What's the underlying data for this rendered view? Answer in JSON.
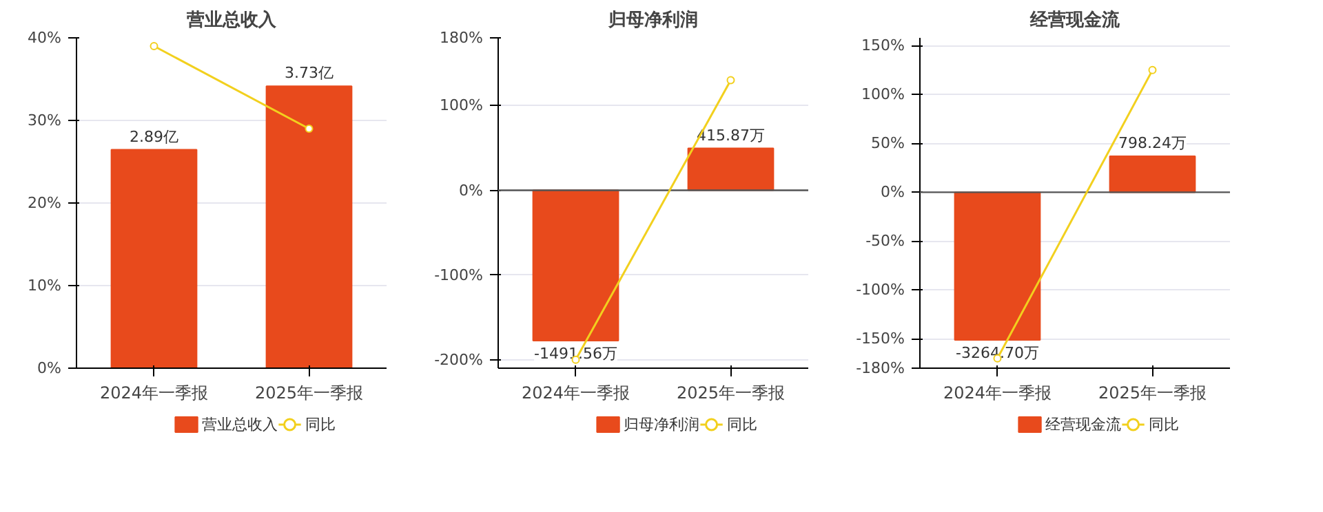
{
  "chart_data": [
    {
      "type": "bar",
      "title": "营业总收入",
      "categories": [
        "2024年一季报",
        "2025年一季报"
      ],
      "series": [
        {
          "name": "营业总收入",
          "axis": "y2",
          "color": "#e84a1c",
          "values": [
            2.89,
            3.73
          ],
          "value_labels": [
            "2.89亿",
            "3.73亿"
          ]
        },
        {
          "name": "同比",
          "type": "line",
          "color": "#f2d01e",
          "values": [
            39,
            29
          ],
          "marker": "circle"
        }
      ],
      "ylim": [
        0,
        40
      ],
      "yticks": [
        {
          "value": 0,
          "label": "0%"
        },
        {
          "value": 10,
          "label": "10%"
        },
        {
          "value": 20,
          "label": "20%"
        },
        {
          "value": 30,
          "label": "30%"
        },
        {
          "value": 40,
          "label": "40%"
        }
      ],
      "y2lim": [
        0,
        4.37
      ],
      "grid": "y",
      "legend": "bottom"
    },
    {
      "type": "bar",
      "title": "归母净利润",
      "categories": [
        "2024年一季报",
        "2025年一季报"
      ],
      "series": [
        {
          "name": "归母净利润",
          "axis": "y2",
          "color": "#e84a1c",
          "values": [
            -1491.56,
            415.87
          ],
          "value_labels": [
            "-1491.56万",
            "415.87万"
          ]
        },
        {
          "name": "同比",
          "type": "line",
          "color": "#f2d01e",
          "values": [
            -200,
            130
          ],
          "marker": "circle"
        }
      ],
      "ylim": [
        -210,
        180
      ],
      "yticks": [
        {
          "value": -200,
          "label": "-200%"
        },
        {
          "value": -100,
          "label": "-100%"
        },
        {
          "value": 0,
          "label": "0%"
        },
        {
          "value": 100,
          "label": "100%"
        },
        {
          "value": 180,
          "label": "180%"
        }
      ],
      "y2lim": [
        -1764,
        1512
      ],
      "grid": "y",
      "legend": "bottom",
      "ref_lines": [
        {
          "axis": "y",
          "value": 0,
          "color": "#555555"
        }
      ]
    },
    {
      "type": "bar",
      "title": "经营现金流",
      "categories": [
        "2024年一季报",
        "2025年一季报"
      ],
      "series": [
        {
          "name": "经营现金流",
          "axis": "y2",
          "color": "#e84a1c",
          "values": [
            -3264.7,
            798.24
          ],
          "value_labels": [
            "-3264.70万",
            "798.24万"
          ]
        },
        {
          "name": "同比",
          "type": "line",
          "color": "#f2d01e",
          "values": [
            -170,
            125
          ],
          "marker": "circle"
        }
      ],
      "ylim": [
        -180,
        158
      ],
      "yticks": [
        {
          "value": -180,
          "label": "-180%"
        },
        {
          "value": -150,
          "label": "-150%"
        },
        {
          "value": -100,
          "label": "-100%"
        },
        {
          "value": -50,
          "label": "-50%"
        },
        {
          "value": 0,
          "label": "0%"
        },
        {
          "value": 50,
          "label": "50%"
        },
        {
          "value": 100,
          "label": "100%"
        },
        {
          "value": 150,
          "label": "150%"
        }
      ],
      "y2lim": [
        -3888,
        3413
      ],
      "grid": "y",
      "legend": "bottom",
      "ref_lines": [
        {
          "axis": "y",
          "value": 0,
          "color": "#555555"
        }
      ]
    }
  ]
}
